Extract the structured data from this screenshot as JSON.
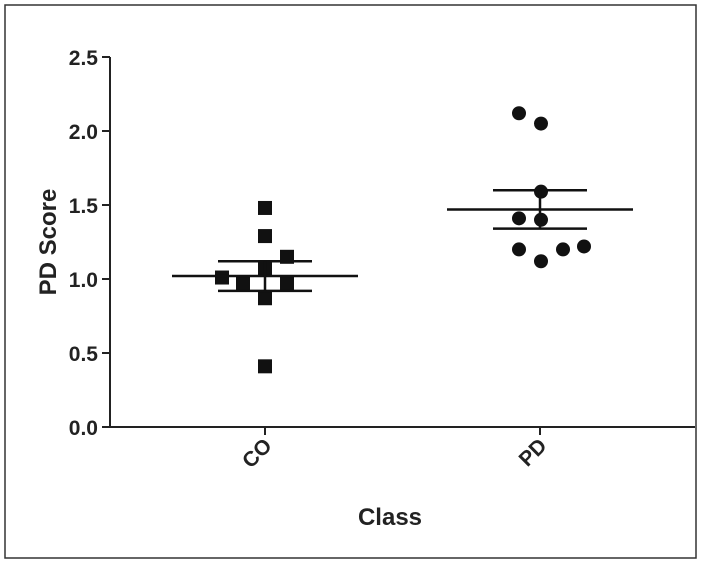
{
  "chart_data": {
    "type": "scatter",
    "x_label": "Class",
    "y_label": "PD Score",
    "categories": [
      "CO",
      "PD"
    ],
    "ylim": [
      0,
      2.5
    ],
    "yticks": [
      {
        "value": 0,
        "label": "0.0"
      },
      {
        "value": 0.5,
        "label": "0.5"
      },
      {
        "value": 1,
        "label": "1.0"
      },
      {
        "value": 1.5,
        "label": "1.5"
      },
      {
        "value": 2,
        "label": "2.0"
      },
      {
        "value": 2.5,
        "label": "2.5"
      }
    ],
    "series": [
      {
        "marker": "square",
        "color": "#111111",
        "values": [
          1.48,
          1.29,
          1.15,
          1.07,
          1.01,
          0.97,
          0.97,
          0.87,
          0.41
        ],
        "mean": 1.02,
        "sem": 0.1
      },
      {
        "marker": "circle",
        "color": "#111111",
        "values": [
          2.12,
          2.05,
          1.59,
          1.41,
          1.4,
          1.2,
          1.2,
          1.22,
          1.12
        ],
        "mean": 1.47,
        "sem": 0.13
      }
    ]
  }
}
